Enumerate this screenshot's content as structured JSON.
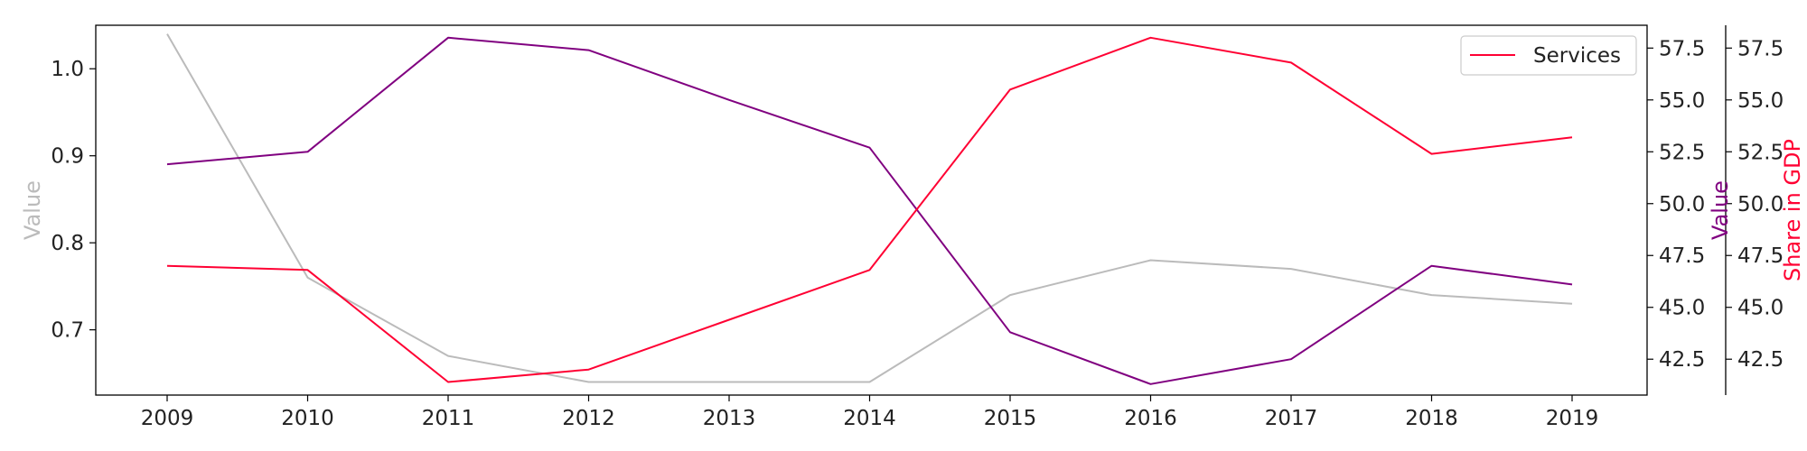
{
  "chart_data": {
    "type": "line",
    "x": [
      2009,
      2010,
      2011,
      2012,
      2013,
      2014,
      2015,
      2016,
      2017,
      2018,
      2019
    ],
    "axes": {
      "left": {
        "label": "Value",
        "color": "#bbbbbb",
        "ylim": [
          0.625,
          1.05
        ],
        "ticks": [
          0.7,
          0.8,
          0.9,
          1.0
        ]
      },
      "right1": {
        "label": "Value",
        "color": "#800080",
        "ylim": [
          40.77,
          58.6
        ],
        "ticks": [
          42.5,
          45.0,
          47.5,
          50.0,
          52.5,
          55.0,
          57.5
        ]
      },
      "right2": {
        "label": "Share in GDP",
        "color": "#ff0033",
        "ylim": [
          40.77,
          58.6
        ],
        "ticks": [
          42.5,
          45.0,
          47.5,
          50.0,
          52.5,
          55.0,
          57.5
        ]
      }
    },
    "series": [
      {
        "axis": "left",
        "color": "#bbbbbb",
        "values": [
          1.04,
          0.76,
          0.67,
          0.64,
          0.64,
          0.64,
          0.74,
          0.78,
          0.77,
          0.74,
          0.73
        ]
      },
      {
        "axis": "right1",
        "color": "#800080",
        "values": [
          51.9,
          52.5,
          58.0,
          57.4,
          55.0,
          52.7,
          43.8,
          41.3,
          42.5,
          47.0,
          46.1
        ]
      },
      {
        "name": "Services",
        "axis": "right2",
        "color": "#ff0033",
        "values": [
          47.0,
          46.8,
          41.4,
          42.0,
          44.4,
          46.8,
          55.5,
          58.0,
          56.8,
          52.4,
          53.2
        ]
      }
    ],
    "legend": {
      "position": "top-right"
    },
    "grid": false
  }
}
